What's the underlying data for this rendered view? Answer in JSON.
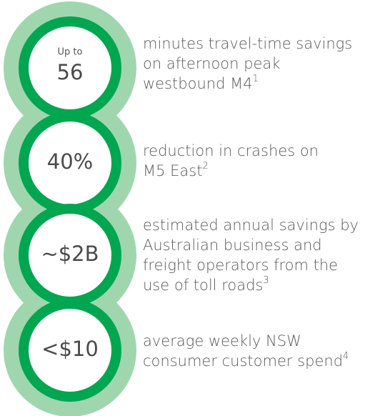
{
  "items": [
    {
      "prefix": "Up to",
      "value": "56",
      "lines": [
        "minutes travel-time savings",
        "on afternoon peak",
        "westbound M4"
      ],
      "footnote": "1"
    },
    {
      "value": "40%",
      "lines": [
        "reduction in crashes on",
        "M5 East"
      ],
      "footnote": "2"
    },
    {
      "value": "~$2B",
      "lines": [
        "estimated annual savings by",
        "Australian business and",
        "freight operators from the",
        "use of toll roads"
      ],
      "footnote": "3"
    },
    {
      "value": "<$10",
      "lines": [
        "average weekly NSW",
        "consumer customer spend"
      ],
      "footnote": "4"
    }
  ]
}
